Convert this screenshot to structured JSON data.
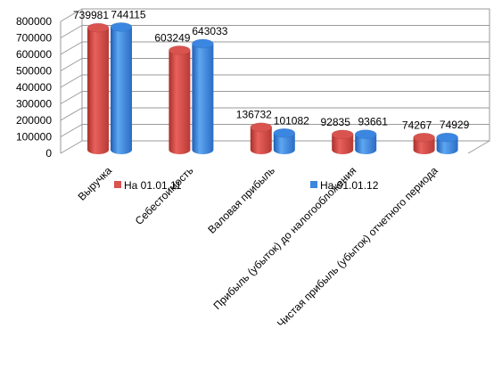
{
  "chart_data": {
    "type": "bar",
    "style": "3d-cylinder",
    "categories": [
      "Выручка",
      "Себестоимость",
      "Валовая прибыль",
      "Прибыль (убыток) до налогообложения",
      "Чистая прибыль (убыток) отчетного периода"
    ],
    "series": [
      {
        "name": "На 01.01.11",
        "color": "#d9534f",
        "values": [
          739981,
          603249,
          136732,
          92835,
          74267
        ]
      },
      {
        "name": "На 01.01.12",
        "color": "#3a86e0",
        "values": [
          744115,
          643033,
          101082,
          93661,
          74929
        ]
      }
    ],
    "ylim": [
      0,
      800000
    ],
    "yticks": [
      "0",
      "100000",
      "200000",
      "300000",
      "400000",
      "500000",
      "600000",
      "700000",
      "800000"
    ],
    "grid": true,
    "legend": "middle, horizontal"
  }
}
